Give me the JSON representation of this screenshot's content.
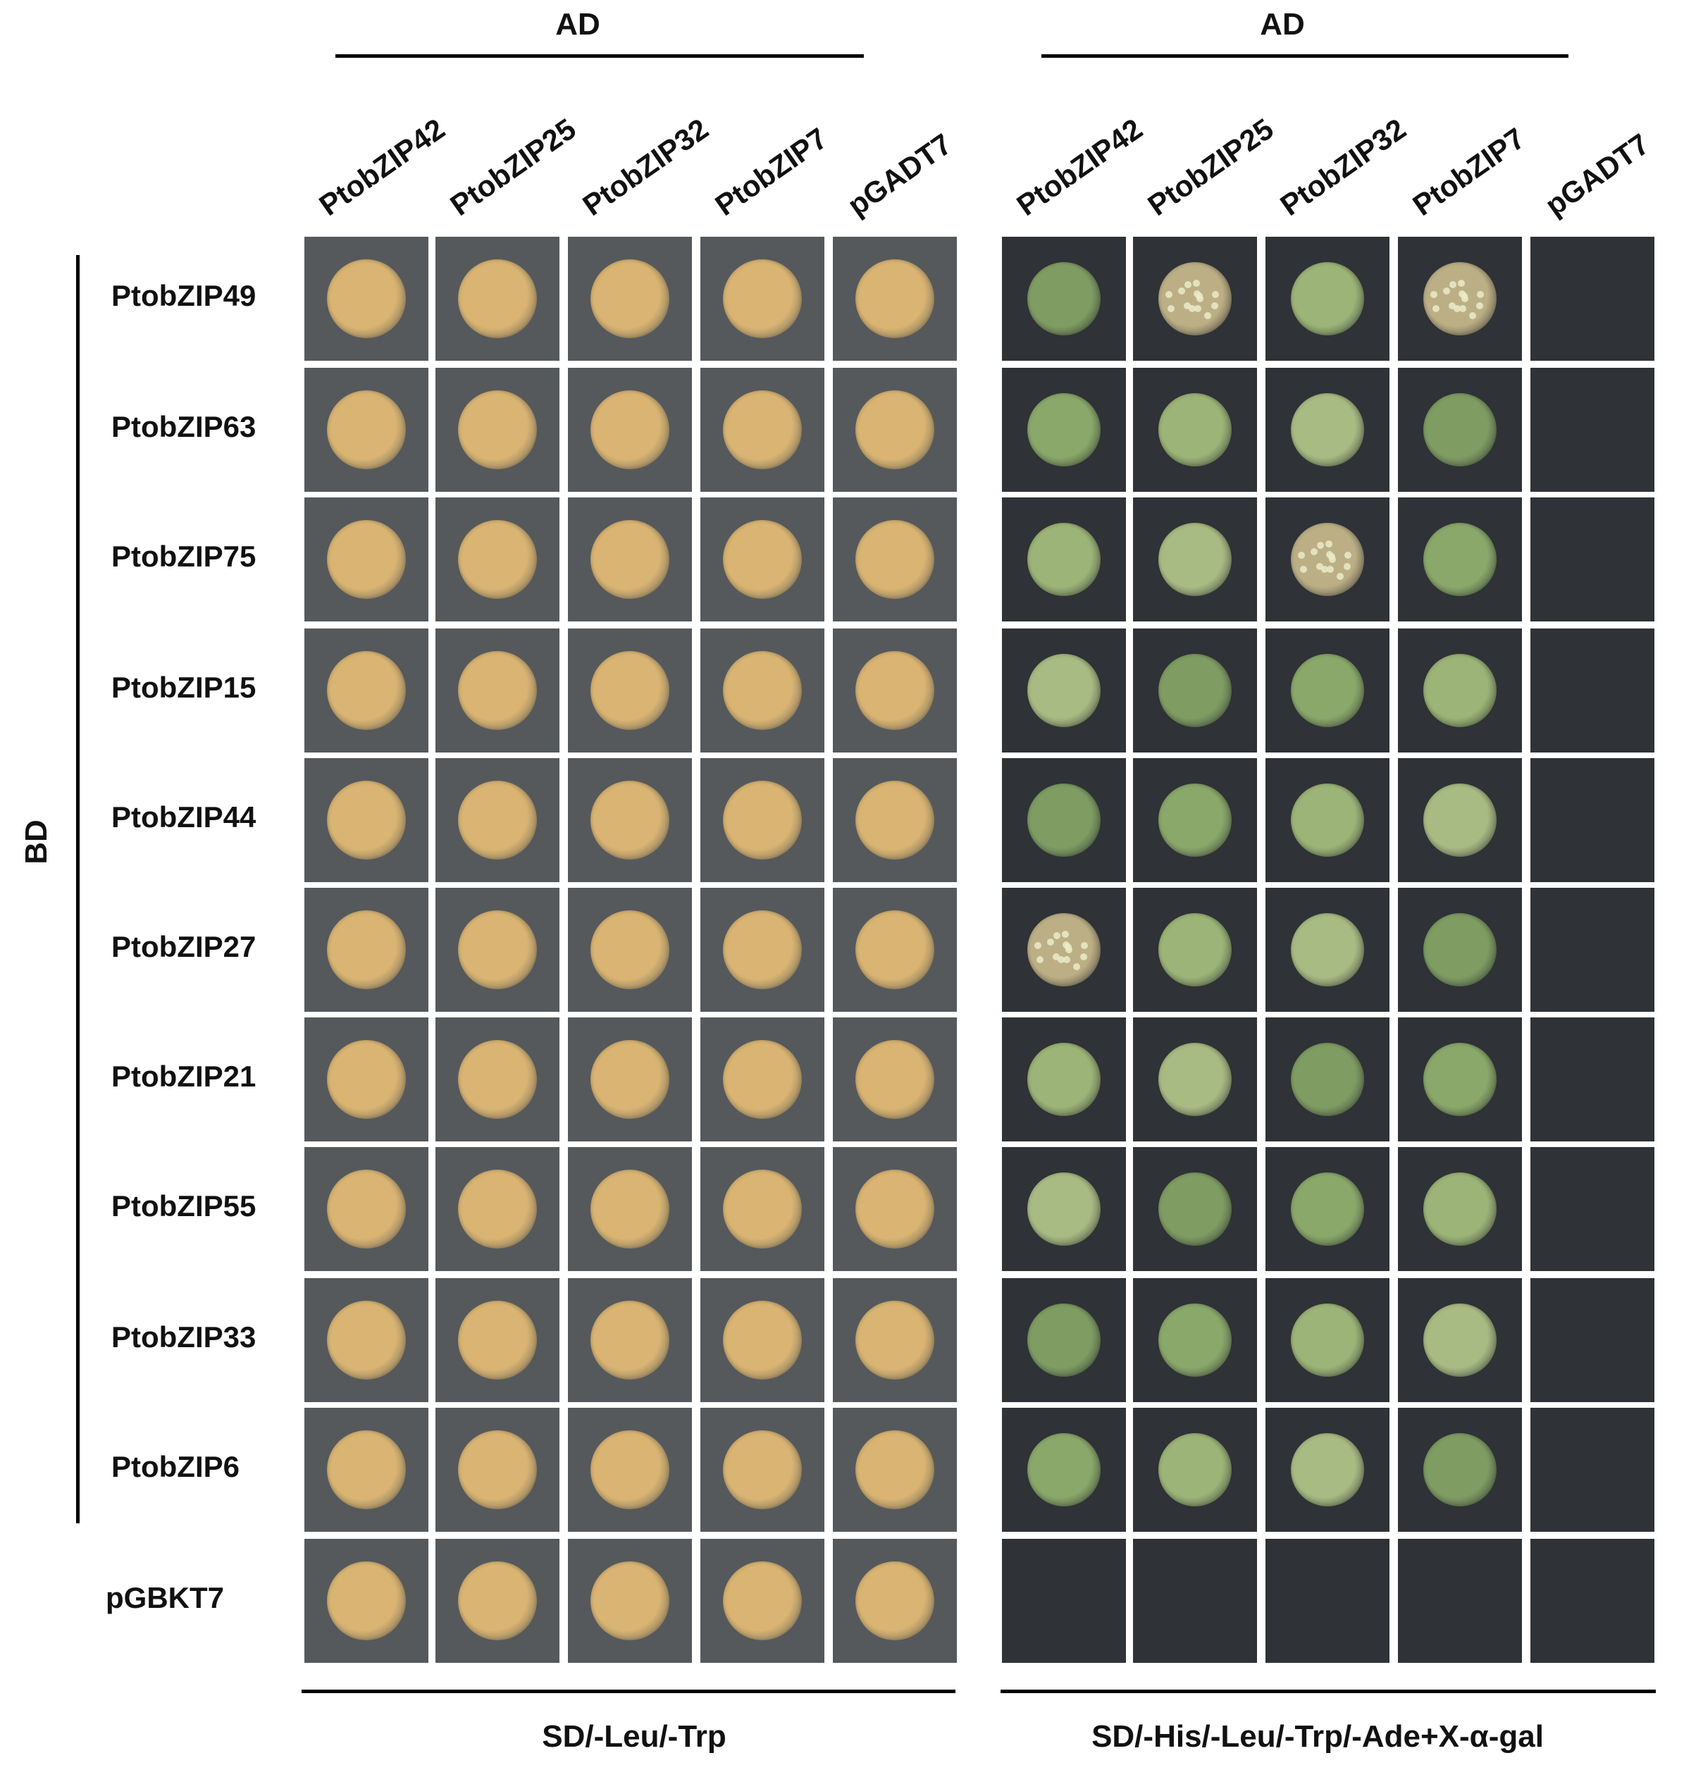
{
  "left_panel": {
    "header": "AD",
    "columns": [
      "PtobZIP42",
      "PtobZIP25",
      "PtobZIP32",
      "PtobZIP7",
      "pGADT7"
    ],
    "medium": "SD/-Leu/-Trp"
  },
  "right_panel": {
    "header": "AD",
    "columns": [
      "PtobZIP42",
      "PtobZIP25",
      "PtobZIP32",
      "PtobZIP7",
      "pGADT7"
    ],
    "medium": "SD/-His/-Leu/-Trp/-Ade+X-α-gal"
  },
  "side_label": "BD",
  "rows": [
    "PtobZIP49",
    "PtobZIP63",
    "PtobZIP75",
    "PtobZIP15",
    "PtobZIP44",
    "PtobZIP27",
    "PtobZIP21",
    "PtobZIP55",
    "PtobZIP33",
    "PtobZIP6",
    "pGBKT7"
  ],
  "colors": {
    "selective_growth_colony": "#8fae6a",
    "nonselective_colony": "#d9b472",
    "plate_background_left": "#55595c",
    "plate_background_right": "#2f3236"
  },
  "growth_matrix_right": [
    [
      1,
      1,
      1,
      1,
      0
    ],
    [
      1,
      1,
      1,
      1,
      0
    ],
    [
      1,
      1,
      1,
      1,
      0
    ],
    [
      1,
      1,
      1,
      1,
      0
    ],
    [
      1,
      1,
      1,
      1,
      0
    ],
    [
      1,
      1,
      1,
      1,
      0
    ],
    [
      1,
      1,
      1,
      1,
      0
    ],
    [
      1,
      1,
      1,
      1,
      0
    ],
    [
      1,
      1,
      1,
      1,
      0
    ],
    [
      1,
      1,
      1,
      1,
      0
    ],
    [
      0,
      0,
      0,
      0,
      0
    ]
  ]
}
